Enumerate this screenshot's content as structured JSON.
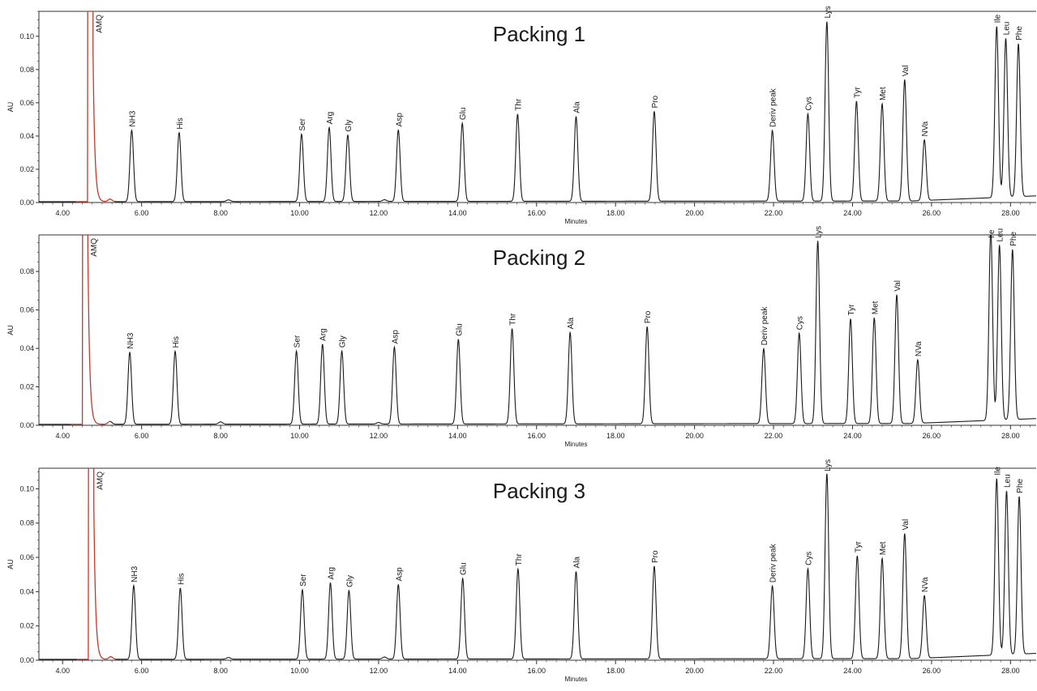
{
  "chart_data": [
    {
      "type": "line",
      "title": "Packing 1",
      "xlabel": "Minutes",
      "ylabel": "AU",
      "xlim": [
        3.4,
        28.65
      ],
      "ylim": [
        0,
        0.115
      ],
      "x_ticks": [
        "4.00",
        "6.00",
        "8.00",
        "10.00",
        "12.00",
        "14.00",
        "16.00",
        "18.00",
        "20.00",
        "22.00",
        "24.00",
        "26.00",
        "28.00"
      ],
      "y_ticks": [
        "0.00",
        "0.02",
        "0.04",
        "0.06",
        "0.08",
        "0.10"
      ],
      "baseline_start": 0.0005,
      "baseline_end": 0.004,
      "solvent_peak": {
        "x": 4.7,
        "label": "AMQ"
      },
      "peaks": [
        {
          "label": "NH3",
          "x": 5.75,
          "y": 0.043
        },
        {
          "label": "His",
          "x": 6.95,
          "y": 0.0415
        },
        {
          "label": "Ser",
          "x": 10.05,
          "y": 0.0405
        },
        {
          "label": "Arg",
          "x": 10.75,
          "y": 0.0445
        },
        {
          "label": "Gly",
          "x": 11.22,
          "y": 0.04
        },
        {
          "label": "Asp",
          "x": 12.5,
          "y": 0.043
        },
        {
          "label": "Glu",
          "x": 14.12,
          "y": 0.047
        },
        {
          "label": "Thr",
          "x": 15.52,
          "y": 0.0525
        },
        {
          "label": "Ala",
          "x": 17.0,
          "y": 0.051
        },
        {
          "label": "Pro",
          "x": 18.98,
          "y": 0.054
        },
        {
          "label": "Deriv peak",
          "x": 21.97,
          "y": 0.0425
        },
        {
          "label": "Cys",
          "x": 22.87,
          "y": 0.0525
        },
        {
          "label": "Lys",
          "x": 23.35,
          "y": 0.108
        },
        {
          "label": "Tyr",
          "x": 24.1,
          "y": 0.06
        },
        {
          "label": "Met",
          "x": 24.75,
          "y": 0.0585
        },
        {
          "label": "Val",
          "x": 25.32,
          "y": 0.073
        },
        {
          "label": "NVa",
          "x": 25.82,
          "y": 0.0365
        },
        {
          "label": "Ile",
          "x": 27.65,
          "y": 0.103
        },
        {
          "label": "Leu",
          "x": 27.88,
          "y": 0.0955
        },
        {
          "label": "Phe",
          "x": 28.2,
          "y": 0.092
        }
      ],
      "minor_peaks": [
        {
          "x": 5.2,
          "y": 0.0015
        },
        {
          "x": 8.2,
          "y": 0.001
        },
        {
          "x": 12.15,
          "y": 0.001
        }
      ],
      "colors": {
        "trace": "#1a1a1a",
        "solvent": "#c0392b"
      }
    },
    {
      "type": "line",
      "title": "Packing 2",
      "xlabel": "Minutes",
      "ylabel": "AU",
      "xlim": [
        3.4,
        28.65
      ],
      "ylim": [
        0,
        0.099
      ],
      "x_ticks": [
        "4.00",
        "6.00",
        "8.00",
        "10.00",
        "12.00",
        "14.00",
        "16.00",
        "18.00",
        "20.00",
        "22.00",
        "24.00",
        "26.00",
        "28.00"
      ],
      "y_ticks": [
        "0.00",
        "0.02",
        "0.04",
        "0.06",
        "0.08"
      ],
      "baseline_start": 0.0005,
      "baseline_end": 0.0035,
      "solvent_peak": {
        "x": 4.57,
        "label": "AMQ"
      },
      "peaks": [
        {
          "label": "NH3",
          "x": 5.7,
          "y": 0.0375
        },
        {
          "label": "His",
          "x": 6.85,
          "y": 0.038
        },
        {
          "label": "Ser",
          "x": 9.92,
          "y": 0.038
        },
        {
          "label": "Arg",
          "x": 10.58,
          "y": 0.0415
        },
        {
          "label": "Gly",
          "x": 11.07,
          "y": 0.038
        },
        {
          "label": "Asp",
          "x": 12.4,
          "y": 0.04
        },
        {
          "label": "Glu",
          "x": 14.02,
          "y": 0.044
        },
        {
          "label": "Thr",
          "x": 15.38,
          "y": 0.0495
        },
        {
          "label": "Ala",
          "x": 16.85,
          "y": 0.0475
        },
        {
          "label": "Pro",
          "x": 18.8,
          "y": 0.0505
        },
        {
          "label": "Deriv peak",
          "x": 21.75,
          "y": 0.039
        },
        {
          "label": "Cys",
          "x": 22.65,
          "y": 0.047
        },
        {
          "label": "Lys",
          "x": 23.12,
          "y": 0.095
        },
        {
          "label": "Tyr",
          "x": 23.95,
          "y": 0.0545
        },
        {
          "label": "Met",
          "x": 24.55,
          "y": 0.055
        },
        {
          "label": "Val",
          "x": 25.12,
          "y": 0.067
        },
        {
          "label": "NVa",
          "x": 25.65,
          "y": 0.033
        },
        {
          "label": "Ile",
          "x": 27.5,
          "y": 0.099
        },
        {
          "label": "Leu",
          "x": 27.72,
          "y": 0.091
        },
        {
          "label": "Phe",
          "x": 28.05,
          "y": 0.0885
        }
      ],
      "minor_peaks": [
        {
          "x": 5.2,
          "y": 0.0015
        },
        {
          "x": 8.0,
          "y": 0.0012
        },
        {
          "x": 12.0,
          "y": 0.0008
        }
      ],
      "colors": {
        "trace": "#1a1a1a",
        "solvent": "#c0392b"
      }
    },
    {
      "type": "line",
      "title": "Packing 3",
      "xlabel": "Minutes",
      "ylabel": "AU",
      "xlim": [
        3.4,
        28.65
      ],
      "ylim": [
        0,
        0.112
      ],
      "x_ticks": [
        "4.00",
        "6.00",
        "8.00",
        "10.00",
        "12.00",
        "14.00",
        "16.00",
        "18.00",
        "20.00",
        "22.00",
        "24.00",
        "26.00",
        "28.00"
      ],
      "y_ticks": [
        "0.00",
        "0.02",
        "0.04",
        "0.06",
        "0.08",
        "0.10"
      ],
      "baseline_start": 0.0005,
      "baseline_end": 0.004,
      "solvent_peak": {
        "x": 4.72,
        "label": "AMQ"
      },
      "peaks": [
        {
          "label": "NH3",
          "x": 5.8,
          "y": 0.043
        },
        {
          "label": "His",
          "x": 6.98,
          "y": 0.0415
        },
        {
          "label": "Ser",
          "x": 10.07,
          "y": 0.0405
        },
        {
          "label": "Arg",
          "x": 10.78,
          "y": 0.0445
        },
        {
          "label": "Gly",
          "x": 11.25,
          "y": 0.04
        },
        {
          "label": "Asp",
          "x": 12.5,
          "y": 0.0435
        },
        {
          "label": "Glu",
          "x": 14.13,
          "y": 0.047
        },
        {
          "label": "Thr",
          "x": 15.53,
          "y": 0.0525
        },
        {
          "label": "Ala",
          "x": 17.0,
          "y": 0.051
        },
        {
          "label": "Pro",
          "x": 18.98,
          "y": 0.054
        },
        {
          "label": "Deriv peak",
          "x": 21.97,
          "y": 0.0425
        },
        {
          "label": "Cys",
          "x": 22.87,
          "y": 0.0525
        },
        {
          "label": "Lys",
          "x": 23.35,
          "y": 0.108
        },
        {
          "label": "Tyr",
          "x": 24.12,
          "y": 0.06
        },
        {
          "label": "Met",
          "x": 24.75,
          "y": 0.0585
        },
        {
          "label": "Val",
          "x": 25.32,
          "y": 0.073
        },
        {
          "label": "NVa",
          "x": 25.82,
          "y": 0.0365
        },
        {
          "label": "Ile",
          "x": 27.65,
          "y": 0.103
        },
        {
          "label": "Leu",
          "x": 27.9,
          "y": 0.0955
        },
        {
          "label": "Phe",
          "x": 28.22,
          "y": 0.092
        }
      ],
      "minor_peaks": [
        {
          "x": 5.22,
          "y": 0.0015
        },
        {
          "x": 8.2,
          "y": 0.001
        },
        {
          "x": 12.15,
          "y": 0.0012
        }
      ],
      "colors": {
        "trace": "#1a1a1a",
        "solvent": "#c0392b"
      }
    }
  ]
}
